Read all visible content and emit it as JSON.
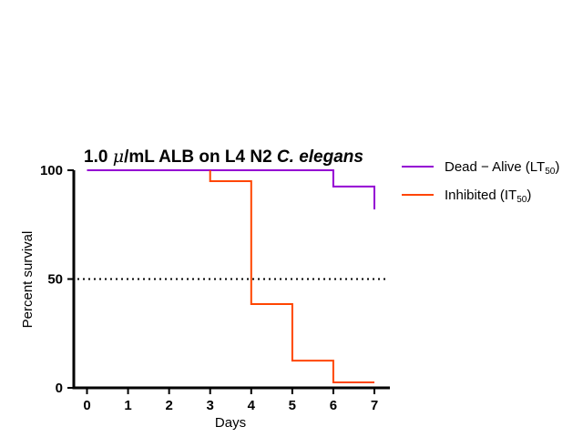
{
  "chart_data": {
    "type": "line",
    "title_parts": {
      "prefix": "1.0 ",
      "mu": "μ",
      "middle": "/mL ALB on L4 N2 ",
      "species": "C. elegans"
    },
    "xlabel": "Days",
    "ylabel": "Percent survival",
    "xlim": [
      0,
      7
    ],
    "ylim": [
      0,
      100
    ],
    "x_ticks": [
      "0",
      "1",
      "2",
      "3",
      "4",
      "5",
      "6",
      "7"
    ],
    "y_ticks": [
      "0",
      "50",
      "100"
    ],
    "reference_line": {
      "y": 50,
      "style": "dotted"
    },
    "series": [
      {
        "legend_main": "Dead − Alive (LT",
        "legend_sub": "50",
        "legend_close": ")",
        "color": "#9400D3",
        "points": [
          [
            0,
            100
          ],
          [
            6,
            100
          ],
          [
            6,
            92.5
          ],
          [
            7,
            92.5
          ],
          [
            7,
            82
          ]
        ]
      },
      {
        "legend_main": "Inhibited (IT",
        "legend_sub": "50",
        "legend_close": ")",
        "color": "#FF4500",
        "points": [
          [
            3,
            100
          ],
          [
            3,
            95
          ],
          [
            4,
            95
          ],
          [
            4,
            38.5
          ],
          [
            5,
            38.5
          ],
          [
            5,
            12.5
          ],
          [
            6,
            12.5
          ],
          [
            6,
            2.5
          ],
          [
            7,
            2.5
          ]
        ]
      }
    ]
  }
}
